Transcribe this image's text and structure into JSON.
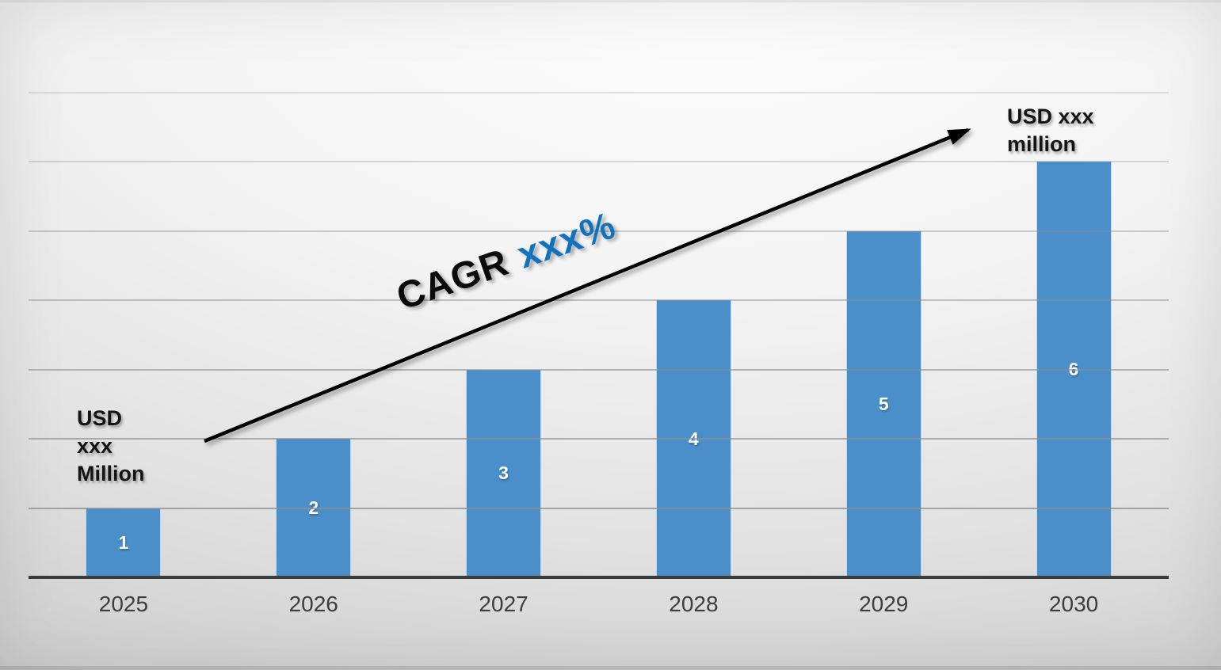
{
  "chart_data": {
    "type": "bar",
    "title": "",
    "xlabel": "",
    "ylabel": "",
    "categories": [
      "2025",
      "2026",
      "2027",
      "2028",
      "2029",
      "2030"
    ],
    "values": [
      1,
      2,
      3,
      4,
      5,
      6
    ],
    "bar_labels": [
      "1",
      "2",
      "3",
      "4",
      "5",
      "6"
    ],
    "ylim": [
      0,
      7
    ],
    "gridline_step": 1,
    "grid": true,
    "legend": false,
    "colors": {
      "bar": "#4a8fc9",
      "bar_label": "#ffffff",
      "axis": "#3b3b3b",
      "tick_label": "#3d3d3d",
      "gridline": "#8f8f8f",
      "annotation_text": "#141414",
      "trend_value": "#1272bd",
      "trend_arrow": "#000000"
    },
    "annotations": {
      "start_value": {
        "lines": [
          "USD",
          "xxx",
          "Million"
        ]
      },
      "end_value": {
        "lines": [
          "USD xxx",
          "million"
        ]
      },
      "trend": {
        "prefix": "CAGR",
        "value": "xxx%"
      }
    }
  }
}
